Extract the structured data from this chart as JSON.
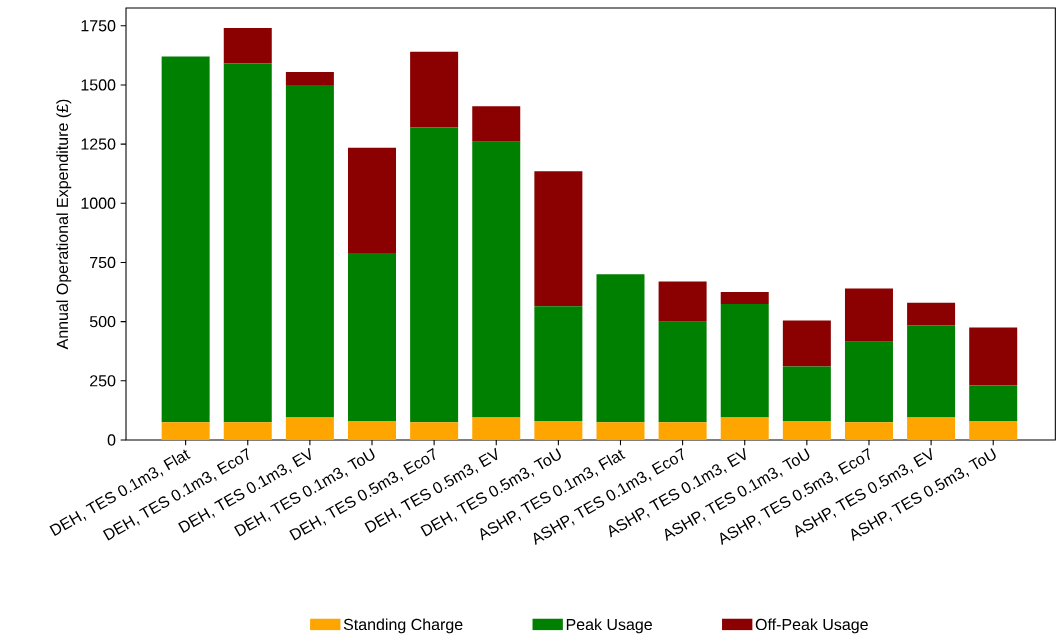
{
  "chart_data": {
    "type": "bar",
    "stacked": true,
    "ylabel": "Annual Operational Expenditure (£)",
    "categories": [
      "DEH, TES 0.1m3, Flat",
      "DEH, TES 0.1m3, Eco7",
      "DEH, TES 0.1m3, EV",
      "DEH, TES 0.1m3, ToU",
      "DEH, TES 0.5m3, Eco7",
      "DEH, TES 0.5m3, EV",
      "DEH, TES 0.5m3, ToU",
      "ASHP, TES 0.1m3, Flat",
      "ASHP, TES 0.1m3, Eco7",
      "ASHP, TES 0.1m3, EV",
      "ASHP, TES 0.1m3, ToU",
      "ASHP, TES 0.5m3, Eco7",
      "ASHP, TES 0.5m3, EV",
      "ASHP, TES 0.5m3, ToU"
    ],
    "series": [
      {
        "name": "Standing Charge",
        "color": "#ffa500",
        "values": [
          75,
          75,
          95,
          80,
          75,
          95,
          80,
          75,
          75,
          95,
          80,
          75,
          95,
          80
        ]
      },
      {
        "name": "Peak Usage",
        "color": "#008000",
        "values": [
          1545,
          1515,
          1405,
          710,
          1245,
          1165,
          485,
          625,
          425,
          480,
          230,
          340,
          390,
          150
        ]
      },
      {
        "name": "Off-Peak Usage",
        "color": "#8b0000",
        "values": [
          0,
          150,
          55,
          445,
          320,
          150,
          570,
          0,
          170,
          50,
          195,
          225,
          95,
          245
        ]
      }
    ],
    "ylim": [
      0,
      1825
    ],
    "yticks": [
      0,
      250,
      500,
      750,
      1000,
      1250,
      1500,
      1750
    ],
    "grid": false,
    "legend": "bottom"
  }
}
